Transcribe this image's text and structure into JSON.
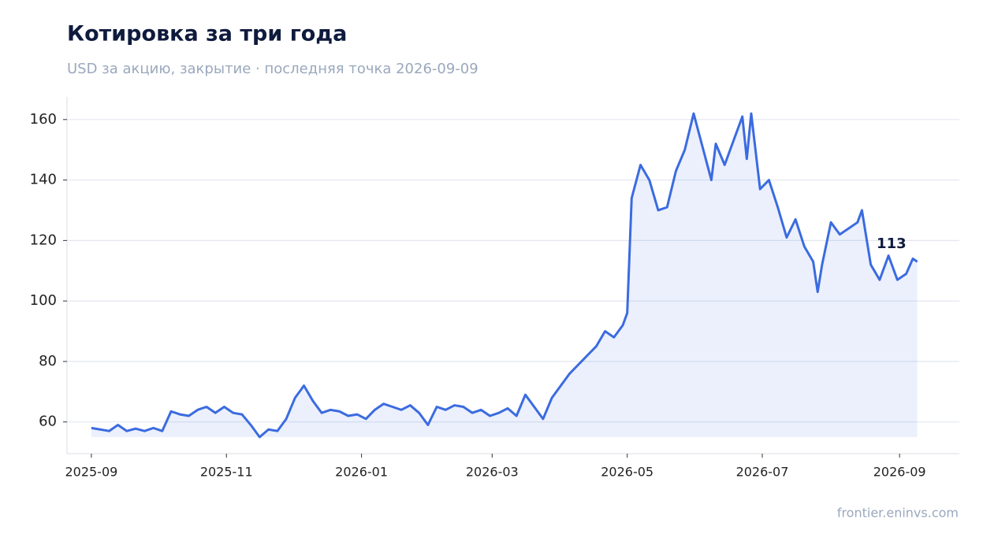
{
  "chart_data": {
    "type": "line",
    "title": "Котировка за три года",
    "subtitle": "USD за акцию, закрытие · последняя точка 2026-09-09",
    "source": "frontier.eninvs.com",
    "x": [
      "2025-09-01",
      "2025-09-05",
      "2025-09-09",
      "2025-09-13",
      "2025-09-17",
      "2025-09-21",
      "2025-09-25",
      "2025-09-29",
      "2025-10-03",
      "2025-10-07",
      "2025-10-11",
      "2025-10-15",
      "2025-10-19",
      "2025-10-23",
      "2025-10-27",
      "2025-10-31",
      "2025-11-04",
      "2025-11-08",
      "2025-11-12",
      "2025-11-16",
      "2025-11-20",
      "2025-11-24",
      "2025-11-28",
      "2025-12-02",
      "2025-12-06",
      "2025-12-10",
      "2025-12-14",
      "2025-12-18",
      "2025-12-22",
      "2025-12-26",
      "2025-12-30",
      "2026-01-03",
      "2026-01-07",
      "2026-01-11",
      "2026-01-15",
      "2026-01-19",
      "2026-01-23",
      "2026-01-27",
      "2026-01-31",
      "2026-02-04",
      "2026-02-08",
      "2026-02-12",
      "2026-02-16",
      "2026-02-20",
      "2026-02-24",
      "2026-02-28",
      "2026-03-04",
      "2026-03-08",
      "2026-03-12",
      "2026-03-16",
      "2026-03-20",
      "2026-03-24",
      "2026-03-28",
      "2026-04-01",
      "2026-04-05",
      "2026-04-09",
      "2026-04-13",
      "2026-04-17",
      "2026-04-21",
      "2026-04-25",
      "2026-04-29",
      "2026-05-01",
      "2026-05-03",
      "2026-05-07",
      "2026-05-11",
      "2026-05-15",
      "2026-05-19",
      "2026-05-23",
      "2026-05-27",
      "2026-05-31",
      "2026-06-04",
      "2026-06-08",
      "2026-06-10",
      "2026-06-14",
      "2026-06-18",
      "2026-06-22",
      "2026-06-24",
      "2026-06-26",
      "2026-06-30",
      "2026-07-04",
      "2026-07-08",
      "2026-07-12",
      "2026-07-16",
      "2026-07-20",
      "2026-07-24",
      "2026-07-26",
      "2026-07-28",
      "2026-08-01",
      "2026-08-05",
      "2026-08-09",
      "2026-08-13",
      "2026-08-15",
      "2026-08-19",
      "2026-08-23",
      "2026-08-27",
      "2026-08-31",
      "2026-09-04",
      "2026-09-07",
      "2026-09-09"
    ],
    "series": [
      {
        "color": "#3b6be0",
        "values": [
          58,
          57.5,
          57,
          59,
          57,
          57.8,
          57,
          58,
          57,
          63.5,
          62.5,
          62,
          64,
          65,
          63,
          65,
          63,
          62.5,
          59,
          55,
          57.5,
          57,
          61,
          68,
          72,
          67,
          63,
          64,
          63.5,
          62,
          62.5,
          61,
          64,
          66,
          65,
          64,
          65.5,
          63,
          59,
          65,
          64,
          65.5,
          65,
          63,
          64,
          62,
          63,
          64.5,
          62,
          69,
          65,
          61,
          68,
          72,
          76,
          79,
          82,
          85,
          90,
          88,
          92,
          96,
          134,
          145,
          140,
          130,
          131,
          143,
          150,
          162,
          151,
          140,
          152,
          145,
          153,
          161,
          147,
          162,
          137,
          140,
          131,
          121,
          127,
          118,
          113,
          103,
          112,
          126,
          122,
          124,
          126,
          130,
          112,
          107,
          115,
          107,
          109,
          114,
          113
        ]
      }
    ],
    "xlim": [
      "2025-08-21",
      "2026-09-28"
    ],
    "xticks": [
      "2025-09",
      "2025-11",
      "2026-01",
      "2026-03",
      "2026-05",
      "2026-07",
      "2026-09"
    ],
    "ylim": [
      49.5,
      167.5
    ],
    "yticks": [
      60,
      80,
      100,
      120,
      140,
      160
    ],
    "grid": true
  }
}
